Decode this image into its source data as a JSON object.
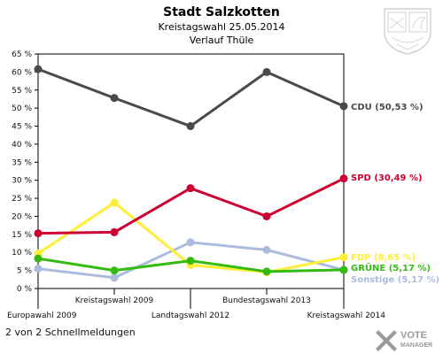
{
  "header": {
    "title": "Stadt Salzkotten",
    "subtitle": "Kreistagswahl 25.05.2014",
    "subsubtitle": "Verlauf Thüle"
  },
  "footer": {
    "text": "2 von 2 Schnellmeldungen"
  },
  "branding": {
    "logo_text_1": "VOTE",
    "logo_text_2": "MANAGER"
  },
  "chart_data": {
    "type": "line",
    "categories": [
      "Europawahl 2009",
      "Kreistagswahl 2009",
      "Landtagswahl 2012",
      "Bundestagswahl 2013",
      "Kreistagswahl 2014"
    ],
    "ylim": [
      0,
      65
    ],
    "yticks": [
      "0 %",
      "5 %",
      "10 %",
      "15 %",
      "20 %",
      "25 %",
      "30 %",
      "35 %",
      "40 %",
      "45 %",
      "50 %",
      "55 %",
      "60 %",
      "65 %"
    ],
    "ytick_values": [
      0,
      5,
      10,
      15,
      20,
      25,
      30,
      35,
      40,
      45,
      50,
      55,
      60,
      65
    ],
    "grid": false,
    "series": [
      {
        "name": "CDU",
        "label": "CDU (50,53 %)",
        "color": "#4a4a4a",
        "values": [
          60.8,
          52.8,
          45.0,
          60.0,
          50.53
        ]
      },
      {
        "name": "SPD",
        "label": "SPD (30,49 %)",
        "color": "#cc0033",
        "values": [
          15.3,
          15.6,
          27.8,
          20.0,
          30.49
        ]
      },
      {
        "name": "FDP",
        "label": "FDP (8,65 %)",
        "color": "#ffee33",
        "values": [
          9.7,
          23.8,
          6.5,
          4.5,
          8.65
        ]
      },
      {
        "name": "GRÜNE",
        "label": "GRÜNE (5,17 %)",
        "color": "#33bb11",
        "values": [
          8.3,
          5.0,
          7.7,
          4.7,
          5.17
        ]
      },
      {
        "name": "Sonstige",
        "label": "Sonstige (5,17 %)",
        "color": "#aabbdd",
        "values": [
          5.5,
          3.0,
          12.8,
          10.7,
          5.17
        ]
      }
    ]
  }
}
